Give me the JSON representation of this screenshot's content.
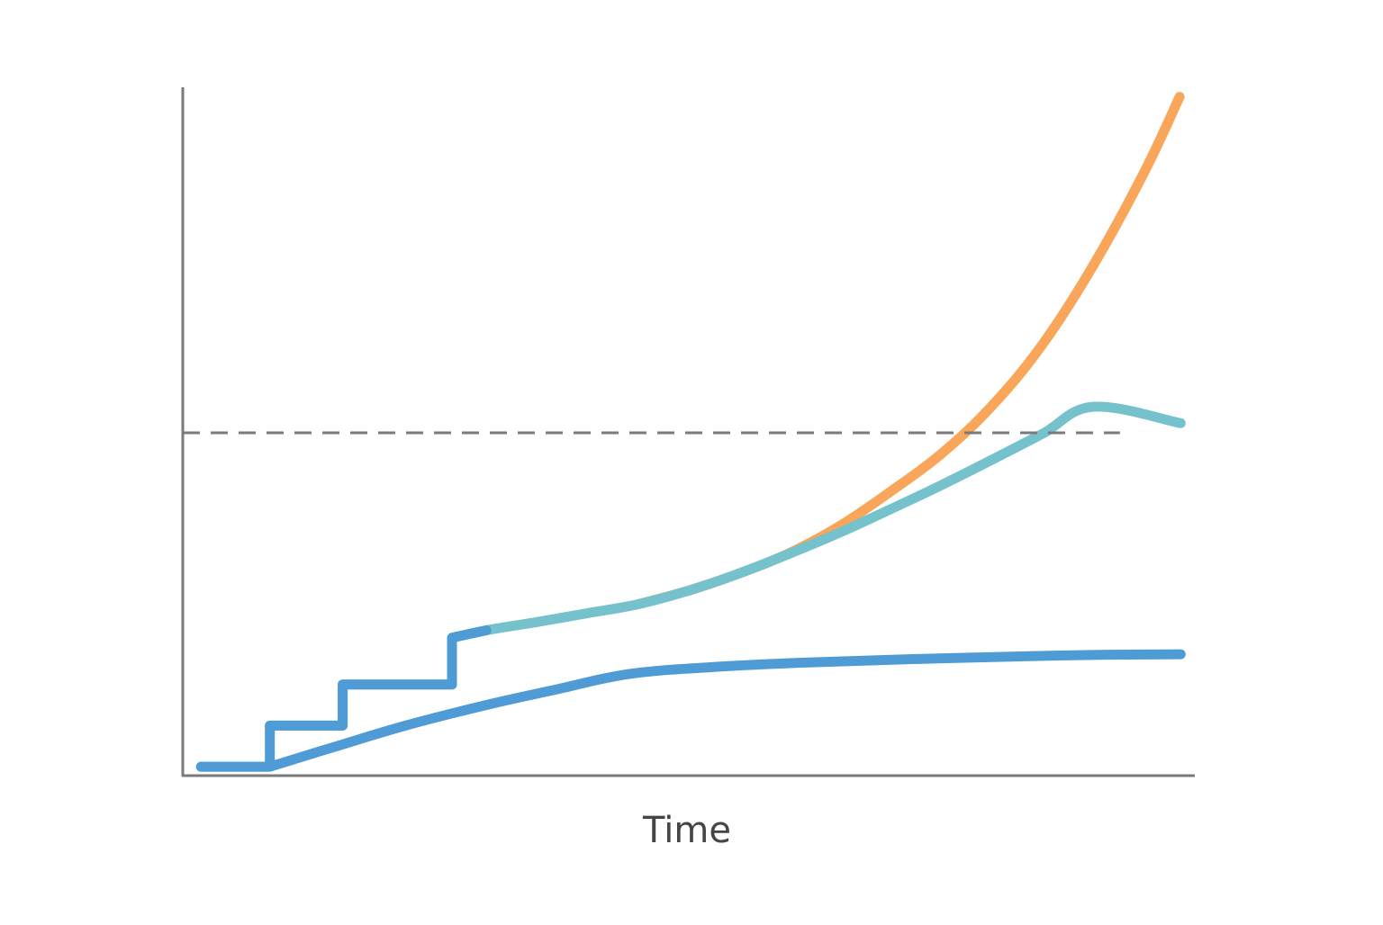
{
  "chart_data": {
    "type": "line",
    "title": "",
    "xlabel": "Time",
    "ylabel": "",
    "xlim": [
      0,
      100
    ],
    "ylim": [
      0,
      100
    ],
    "grid": false,
    "legend": "none",
    "x_ticks_shown": false,
    "y_ticks_shown": false,
    "reference_lines": [
      {
        "type": "horizontal",
        "y": 50,
        "style": "dashed",
        "x_range": [
          0,
          92.6
        ],
        "color": "#7a7a7a"
      }
    ],
    "series": [
      {
        "color": "#f9a55a",
        "style": "solid",
        "points": [
          [
            45,
            25
          ],
          [
            50,
            27
          ],
          [
            55,
            29.5
          ],
          [
            60,
            32.5
          ],
          [
            65,
            36.5
          ],
          [
            70,
            41.5
          ],
          [
            75,
            47
          ],
          [
            80,
            54
          ],
          [
            85,
            63
          ],
          [
            90,
            74.5
          ],
          [
            95,
            88
          ],
          [
            98.5,
            99
          ]
        ]
      },
      {
        "color": "#76c2cc",
        "style": "solid",
        "points": [
          [
            8.6,
            7.3
          ],
          [
            15.8,
            7.3
          ],
          [
            15.8,
            13.3
          ],
          [
            26.6,
            13.3
          ],
          [
            26.6,
            20.1
          ],
          [
            30,
            21.2
          ],
          [
            35,
            22.4
          ],
          [
            40,
            23.7
          ],
          [
            45,
            25
          ],
          [
            50,
            27
          ],
          [
            55,
            29.5
          ],
          [
            60,
            32.4
          ],
          [
            65,
            35.5
          ],
          [
            70,
            38.9
          ],
          [
            75,
            42.4
          ],
          [
            80,
            46.1
          ],
          [
            85,
            49.9
          ],
          [
            90,
            53.8
          ],
          [
            98.6,
            51.4
          ]
        ]
      },
      {
        "color": "#4f9bd5",
        "style": "solid",
        "points": [
          [
            1.8,
            1.3
          ],
          [
            8.6,
            1.3
          ],
          [
            8.6,
            7.3
          ],
          [
            15.8,
            7.3
          ],
          [
            15.8,
            13.3
          ],
          [
            26.6,
            13.3
          ],
          [
            26.6,
            20.1
          ],
          [
            30,
            21.2
          ]
        ],
        "note_hidden": true
      },
      {
        "color": "#4f9bd5",
        "style": "solid",
        "points": [
          [
            1.8,
            1.3
          ],
          [
            8.6,
            1.3
          ],
          [
            15,
            4.2
          ],
          [
            22,
            7.3
          ],
          [
            30,
            10.3
          ],
          [
            37,
            12.6
          ],
          [
            44,
            14.8
          ],
          [
            52,
            15.8
          ],
          [
            60,
            16.4
          ],
          [
            70,
            16.9
          ],
          [
            80,
            17.3
          ],
          [
            90,
            17.6
          ],
          [
            98.6,
            17.7
          ]
        ]
      }
    ]
  }
}
